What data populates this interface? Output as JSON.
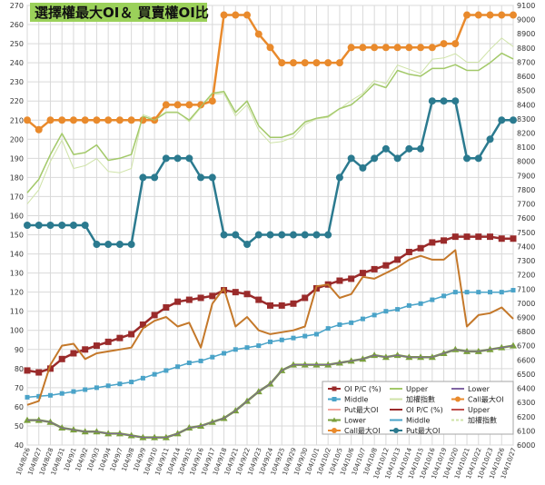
{
  "chart_data": {
    "type": "line",
    "title": "選擇權最大OI＆ 買賣權OI比",
    "x": [
      "104/8/26",
      "104/8/27",
      "104/8/28",
      "104/8/31",
      "104/9/1",
      "104/9/2",
      "104/9/3",
      "104/9/4",
      "104/9/7",
      "104/9/8",
      "104/9/9",
      "104/9/10",
      "104/9/11",
      "104/9/14",
      "104/9/15",
      "104/9/16",
      "104/9/17",
      "104/9/18",
      "104/9/21",
      "104/9/22",
      "104/9/23",
      "104/9/24",
      "104/9/25",
      "104/9/29",
      "104/9/30",
      "104/10/1",
      "104/10/2",
      "104/10/5",
      "104/10/6",
      "104/10/7",
      "104/10/8",
      "104/10/12",
      "104/10/13",
      "104/10/14",
      "104/10/15",
      "104/10/16",
      "104/10/19",
      "104/10/20",
      "104/10/21",
      "104/10/22",
      "104/10/23",
      "104/10/26",
      "104/10/27"
    ],
    "x_tick_labels": [
      "104/8/26",
      "104/8/27",
      "104/8/28",
      "104/8/31",
      "104/9/1",
      "104/9/2",
      "104/9/3",
      "104/9/4",
      "104/9/7",
      "104/9/8",
      "104/9/9",
      "104/9/10",
      "104/9/11",
      "104/9/14",
      "104/9/15",
      "104/9/16",
      "104/9/17",
      "104/9/18",
      "104/9/21",
      "104/9/22",
      "104/9/23",
      "104/9/24",
      "104/9/25",
      "104/9/29",
      "104/9/30",
      "104/10/1",
      "104/10/2",
      "104/10/5",
      "104/10/6",
      "104/10/7",
      "104/10/8",
      "104/10/12",
      "104/10/13",
      "104/10/14",
      "104/10/15",
      "104/10/16",
      "104/10/19",
      "104/10/20",
      "104/10/21",
      "104/10/22",
      "104/10/23",
      "104/10/26",
      "104/10/27"
    ],
    "y_left": {
      "min": 40,
      "max": 270,
      "step": 10
    },
    "y_right": {
      "min": 6000,
      "max": 9100,
      "step": 100
    },
    "grid": true,
    "legend_position": "bottom-right",
    "series": [
      {
        "name": "OI P/C (%)",
        "axis": "left",
        "color": "#9a2b2b",
        "marker": "square",
        "width": 2.5,
        "values": [
          79,
          78,
          80,
          85,
          88,
          90,
          92,
          94,
          96,
          98,
          103,
          108,
          112,
          115,
          116,
          117,
          118,
          121,
          120,
          119,
          116,
          113,
          113,
          114,
          117,
          122,
          124,
          126,
          127,
          130,
          132,
          134,
          137,
          141,
          143,
          146,
          147,
          149,
          149,
          149,
          149,
          148,
          148
        ]
      },
      {
        "name": "Middle",
        "axis": "left",
        "color": "#4aa3c8",
        "marker": "square",
        "width": 1.5,
        "values": [
          65,
          65.5,
          66,
          67,
          68,
          69,
          70,
          71,
          72,
          73,
          75,
          77,
          79,
          81,
          83,
          84,
          86,
          88,
          90,
          91,
          92,
          94,
          95,
          96,
          97,
          98,
          101,
          103,
          104,
          106,
          108,
          110,
          111,
          113,
          114,
          116,
          118,
          120,
          120,
          120,
          120,
          120,
          121
        ]
      },
      {
        "name": "Put最大OI",
        "axis": "left",
        "color": "#f2a8a0",
        "marker": "none",
        "width": 1,
        "values": [
          61,
          63,
          82,
          92,
          93,
          85,
          88,
          89,
          90,
          91,
          101,
          105,
          107,
          102,
          104,
          91,
          114,
          122,
          102,
          107,
          100,
          98,
          99,
          100,
          102,
          123,
          124,
          117,
          119,
          128,
          127,
          130,
          133,
          137,
          139,
          137,
          137,
          142,
          102,
          108,
          109,
          112,
          106
        ]
      },
      {
        "name": "Upper",
        "axis": "left",
        "color": "#a3c96a",
        "marker": "none",
        "width": 1.5,
        "values": [
          172,
          179,
          192,
          203,
          192,
          193,
          197,
          189,
          190,
          192,
          212,
          210,
          214,
          214,
          210,
          217,
          224,
          225,
          214,
          220,
          207,
          201,
          201,
          203,
          209,
          211,
          212,
          216,
          218,
          223,
          229,
          227,
          236,
          234,
          233,
          237,
          237,
          239,
          236,
          236,
          240,
          245,
          242
        ]
      },
      {
        "name": "Middle",
        "axis": "left",
        "color": "#4aa3c8",
        "marker": "none",
        "width": 1,
        "values": [
          65,
          65.5,
          66,
          67,
          68,
          69,
          70,
          71,
          72,
          73,
          75,
          77,
          79,
          81,
          83,
          84,
          86,
          88,
          90,
          91,
          92,
          94,
          95,
          96,
          97,
          98,
          101,
          103,
          104,
          106,
          108,
          110,
          111,
          113,
          114,
          116,
          118,
          120,
          120,
          120,
          120,
          120,
          121
        ]
      },
      {
        "name": "OI P/C (%)",
        "axis": "left",
        "color": "#9a2b2b",
        "marker": "none",
        "width": 1,
        "values": [
          79,
          78,
          80,
          85,
          88,
          90,
          92,
          94,
          96,
          98,
          103,
          108,
          112,
          115,
          116,
          117,
          118,
          121,
          120,
          119,
          116,
          113,
          113,
          114,
          117,
          122,
          124,
          126,
          127,
          130,
          132,
          134,
          137,
          141,
          143,
          146,
          147,
          149,
          149,
          149,
          149,
          148,
          148
        ]
      },
      {
        "name": "Lower",
        "axis": "left",
        "color": "#7a9f3d",
        "marker": "triangle",
        "width": 2.5,
        "values": [
          53,
          53,
          52,
          49,
          48,
          47,
          47,
          46,
          46,
          45,
          44,
          44,
          44,
          46,
          49,
          50,
          52,
          54,
          58,
          63,
          68,
          72,
          79,
          82,
          82,
          82,
          82,
          83,
          84,
          85,
          87,
          86,
          87,
          86,
          86,
          86,
          88,
          90,
          89,
          89,
          90,
          91,
          92
        ]
      },
      {
        "name": "加權指數",
        "axis": "right",
        "color": "#cfe3a8",
        "marker": "none",
        "width": 1,
        "values": [
          7700,
          7800,
          8000,
          8150,
          7950,
          7970,
          8020,
          7930,
          7920,
          7950,
          8330,
          8300,
          8350,
          8350,
          8280,
          8380,
          8470,
          8480,
          8320,
          8400,
          8220,
          8130,
          8140,
          8170,
          8260,
          8300,
          8310,
          8370,
          8430,
          8480,
          8570,
          8550,
          8680,
          8650,
          8620,
          8720,
          8730,
          8760,
          8700,
          8700,
          8790,
          8870,
          8810
        ]
      },
      {
        "name": "Call最大OI",
        "axis": "left",
        "color": "#e98a2c",
        "marker": "circle",
        "width": 2.5,
        "values": [
          210,
          205,
          210,
          210,
          210,
          210,
          210,
          210,
          210,
          210,
          210,
          210,
          218,
          218,
          218,
          218,
          220,
          265,
          265,
          265,
          255,
          248,
          240,
          240,
          240,
          240,
          240,
          240,
          248,
          248,
          248,
          248,
          248,
          248,
          248,
          248,
          250,
          250,
          265,
          265,
          265,
          265,
          265
        ]
      },
      {
        "name": "Lower",
        "axis": "left",
        "color": "#8064a2",
        "marker": "none",
        "width": 1,
        "values": [
          53,
          53,
          52,
          49,
          48,
          47,
          47,
          46,
          46,
          45,
          44,
          44,
          44,
          46,
          49,
          50,
          52,
          54,
          58,
          63,
          68,
          72,
          79,
          82,
          82,
          82,
          82,
          83,
          84,
          85,
          87,
          86,
          87,
          86,
          86,
          86,
          88,
          90,
          89,
          89,
          90,
          91,
          92
        ]
      },
      {
        "name": "Upper",
        "axis": "left",
        "color": "#a3c96a",
        "marker": "none",
        "width": 1,
        "values": [
          172,
          179,
          192,
          203,
          192,
          193,
          197,
          189,
          190,
          192,
          212,
          210,
          214,
          214,
          210,
          217,
          224,
          225,
          214,
          220,
          207,
          201,
          201,
          203,
          209,
          211,
          212,
          216,
          218,
          223,
          229,
          227,
          236,
          234,
          233,
          237,
          237,
          239,
          236,
          236,
          240,
          245,
          242
        ]
      },
      {
        "name": "Put最大OI",
        "axis": "left",
        "color": "#c4782a",
        "marker": "none",
        "width": 2,
        "values": [
          61,
          63,
          82,
          92,
          93,
          85,
          88,
          89,
          90,
          91,
          101,
          105,
          107,
          102,
          104,
          91,
          114,
          122,
          102,
          107,
          100,
          98,
          99,
          100,
          102,
          123,
          124,
          117,
          119,
          128,
          127,
          130,
          133,
          137,
          139,
          137,
          137,
          142,
          102,
          108,
          109,
          112,
          106
        ]
      },
      {
        "name": "Put最大OI",
        "axis": "left",
        "color": "#2b7a8f",
        "marker": "circle",
        "width": 2.5,
        "values": [
          155,
          155,
          155,
          155,
          155,
          155,
          145,
          145,
          145,
          145,
          180,
          180,
          190,
          190,
          190,
          180,
          180,
          150,
          150,
          145,
          150,
          150,
          150,
          150,
          150,
          150,
          150,
          180,
          190,
          185,
          190,
          195,
          190,
          195,
          195,
          220,
          220,
          220,
          190,
          190,
          200,
          210,
          210
        ]
      }
    ],
    "legend": [
      {
        "name": "OI P/C (%)",
        "color": "#9a2b2b",
        "marker": "square"
      },
      {
        "name": "Upper",
        "color": "#a3c96a",
        "marker": "none"
      },
      {
        "name": "Lower",
        "color": "#8064a2",
        "marker": "none"
      },
      {
        "name": "Middle",
        "color": "#4aa3c8",
        "marker": "square"
      },
      {
        "name": "加權指數",
        "color": "#cfe3a8",
        "marker": "none"
      },
      {
        "name": "Call最大OI",
        "color": "#e98a2c",
        "marker": "circle"
      },
      {
        "name": "Put最大OI",
        "color": "#f2a8a0",
        "marker": "none"
      },
      {
        "name": "OI P/C (%)",
        "color": "#9a2b2b",
        "marker": "none"
      },
      {
        "name": "Upper",
        "color": "#c0504d",
        "marker": "none"
      },
      {
        "name": "Lower",
        "color": "#7a9f3d",
        "marker": "triangle"
      },
      {
        "name": "Middle",
        "color": "#4aa3c8",
        "marker": "none"
      },
      {
        "name": "加權指數",
        "color": "#cfe3a8",
        "marker": "dash"
      },
      {
        "name": "Call最大OI",
        "color": "#e98a2c",
        "marker": "circle"
      },
      {
        "name": "Put最大OI",
        "color": "#2b7a8f",
        "marker": "circle"
      }
    ]
  },
  "colors": {
    "title_bg": "#9bd15a",
    "grid": "#d9d9d9",
    "axis_text": "#333333"
  }
}
